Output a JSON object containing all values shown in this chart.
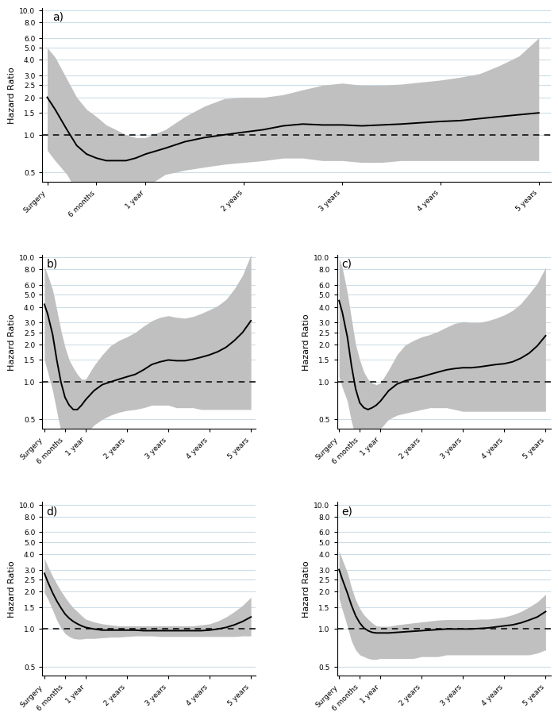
{
  "yticks": [
    0.5,
    1.0,
    1.5,
    2.0,
    2.5,
    3.0,
    4.0,
    5.0,
    6.0,
    8.0,
    10.0
  ],
  "xtick_labels": [
    "Surgery",
    "6 months",
    "1 year",
    "2 years",
    "3 years",
    "4 years",
    "5 years"
  ],
  "xtick_pos": [
    0,
    0.5,
    1.0,
    2.0,
    3.0,
    4.0,
    5.0
  ],
  "ylabel": "Hazard Ratio",
  "panel_labels": [
    "a)",
    "b)",
    "c)",
    "d)",
    "e)"
  ],
  "reference_line": 1.0,
  "ylim_log": [
    0.42,
    10.5
  ],
  "ci_color": "#c0c0c0",
  "line_color": "#000000",
  "grid_color": "#ccdde8",
  "background_color": "#ffffff",
  "panels": {
    "a": {
      "x": [
        0,
        0.08,
        0.2,
        0.3,
        0.4,
        0.5,
        0.6,
        0.7,
        0.8,
        0.9,
        1.0,
        1.2,
        1.4,
        1.6,
        1.8,
        2.0,
        2.2,
        2.4,
        2.6,
        2.8,
        3.0,
        3.2,
        3.4,
        3.6,
        3.8,
        4.0,
        4.2,
        4.4,
        4.6,
        4.8,
        5.0
      ],
      "y": [
        2.0,
        1.6,
        1.1,
        0.82,
        0.7,
        0.65,
        0.62,
        0.62,
        0.62,
        0.65,
        0.7,
        0.78,
        0.88,
        0.95,
        1.0,
        1.05,
        1.1,
        1.18,
        1.22,
        1.2,
        1.2,
        1.18,
        1.2,
        1.22,
        1.25,
        1.28,
        1.3,
        1.35,
        1.4,
        1.45,
        1.5
      ],
      "upper": [
        5.0,
        4.2,
        2.8,
        2.0,
        1.6,
        1.4,
        1.2,
        1.1,
        1.0,
        0.95,
        0.95,
        1.1,
        1.4,
        1.7,
        1.95,
        2.0,
        2.0,
        2.1,
        2.3,
        2.5,
        2.6,
        2.5,
        2.5,
        2.55,
        2.65,
        2.75,
        2.9,
        3.1,
        3.6,
        4.3,
        6.0
      ],
      "lower": [
        0.75,
        0.62,
        0.48,
        0.35,
        0.3,
        0.28,
        0.27,
        0.27,
        0.28,
        0.32,
        0.38,
        0.48,
        0.52,
        0.55,
        0.58,
        0.6,
        0.62,
        0.65,
        0.65,
        0.62,
        0.62,
        0.6,
        0.6,
        0.62,
        0.62,
        0.62,
        0.62,
        0.62,
        0.62,
        0.62,
        0.62
      ]
    },
    "b": {
      "x": [
        0,
        0.08,
        0.2,
        0.3,
        0.4,
        0.5,
        0.6,
        0.7,
        0.8,
        0.9,
        1.0,
        1.2,
        1.4,
        1.6,
        1.8,
        2.0,
        2.2,
        2.4,
        2.6,
        2.8,
        3.0,
        3.2,
        3.4,
        3.6,
        3.8,
        4.0,
        4.2,
        4.4,
        4.6,
        4.8,
        5.0
      ],
      "y": [
        4.2,
        3.5,
        2.4,
        1.5,
        1.0,
        0.75,
        0.65,
        0.6,
        0.6,
        0.65,
        0.72,
        0.85,
        0.95,
        1.0,
        1.05,
        1.1,
        1.15,
        1.25,
        1.38,
        1.45,
        1.5,
        1.48,
        1.48,
        1.52,
        1.58,
        1.65,
        1.75,
        1.9,
        2.15,
        2.5,
        3.1
      ],
      "upper": [
        8.5,
        7.2,
        5.5,
        3.8,
        2.6,
        1.9,
        1.5,
        1.3,
        1.15,
        1.05,
        1.05,
        1.35,
        1.65,
        1.95,
        2.15,
        2.3,
        2.5,
        2.8,
        3.1,
        3.3,
        3.4,
        3.3,
        3.25,
        3.35,
        3.55,
        3.8,
        4.1,
        4.6,
        5.6,
        7.2,
        10.5
      ],
      "lower": [
        1.5,
        1.2,
        0.85,
        0.58,
        0.4,
        0.32,
        0.28,
        0.27,
        0.28,
        0.32,
        0.38,
        0.45,
        0.5,
        0.54,
        0.57,
        0.59,
        0.6,
        0.62,
        0.65,
        0.65,
        0.65,
        0.62,
        0.62,
        0.62,
        0.6,
        0.6,
        0.6,
        0.6,
        0.6,
        0.6,
        0.6
      ]
    },
    "c": {
      "x": [
        0,
        0.08,
        0.2,
        0.3,
        0.4,
        0.5,
        0.6,
        0.7,
        0.8,
        0.9,
        1.0,
        1.2,
        1.4,
        1.6,
        1.8,
        2.0,
        2.2,
        2.4,
        2.6,
        2.8,
        3.0,
        3.2,
        3.4,
        3.6,
        3.8,
        4.0,
        4.2,
        4.4,
        4.6,
        4.8,
        5.0
      ],
      "y": [
        4.5,
        3.6,
        2.3,
        1.35,
        0.88,
        0.68,
        0.62,
        0.6,
        0.62,
        0.65,
        0.7,
        0.85,
        0.96,
        1.02,
        1.06,
        1.1,
        1.15,
        1.2,
        1.25,
        1.28,
        1.3,
        1.3,
        1.32,
        1.35,
        1.38,
        1.4,
        1.45,
        1.55,
        1.7,
        1.95,
        2.35
      ],
      "upper": [
        9.8,
        8.2,
        5.2,
        3.2,
        2.0,
        1.5,
        1.2,
        1.05,
        0.98,
        0.95,
        0.98,
        1.25,
        1.65,
        1.98,
        2.15,
        2.3,
        2.4,
        2.55,
        2.75,
        2.95,
        3.05,
        3.0,
        3.0,
        3.1,
        3.25,
        3.45,
        3.75,
        4.25,
        5.1,
        6.2,
        8.3
      ],
      "lower": [
        1.1,
        0.9,
        0.7,
        0.48,
        0.36,
        0.28,
        0.27,
        0.28,
        0.3,
        0.35,
        0.42,
        0.5,
        0.54,
        0.56,
        0.58,
        0.6,
        0.62,
        0.62,
        0.62,
        0.6,
        0.58,
        0.58,
        0.58,
        0.58,
        0.58,
        0.58,
        0.58,
        0.58,
        0.58,
        0.58,
        0.58
      ]
    },
    "d": {
      "x": [
        0,
        0.08,
        0.2,
        0.3,
        0.4,
        0.5,
        0.6,
        0.7,
        0.8,
        0.9,
        1.0,
        1.2,
        1.4,
        1.6,
        1.8,
        2.0,
        2.2,
        2.4,
        2.6,
        2.8,
        3.0,
        3.2,
        3.4,
        3.6,
        3.8,
        4.0,
        4.2,
        4.4,
        4.6,
        4.8,
        5.0
      ],
      "y": [
        2.8,
        2.4,
        1.95,
        1.68,
        1.48,
        1.32,
        1.22,
        1.15,
        1.1,
        1.06,
        1.03,
        1.0,
        0.98,
        0.98,
        0.98,
        0.98,
        0.98,
        0.97,
        0.97,
        0.97,
        0.97,
        0.97,
        0.97,
        0.97,
        0.97,
        0.98,
        1.0,
        1.03,
        1.08,
        1.15,
        1.25
      ],
      "upper": [
        3.7,
        3.2,
        2.65,
        2.3,
        2.02,
        1.8,
        1.62,
        1.48,
        1.38,
        1.28,
        1.2,
        1.14,
        1.1,
        1.08,
        1.06,
        1.06,
        1.06,
        1.06,
        1.06,
        1.06,
        1.06,
        1.06,
        1.06,
        1.06,
        1.08,
        1.1,
        1.16,
        1.25,
        1.38,
        1.55,
        1.8
      ],
      "lower": [
        1.95,
        1.75,
        1.42,
        1.18,
        1.02,
        0.92,
        0.87,
        0.84,
        0.83,
        0.83,
        0.84,
        0.84,
        0.85,
        0.86,
        0.86,
        0.87,
        0.88,
        0.88,
        0.88,
        0.87,
        0.87,
        0.87,
        0.87,
        0.87,
        0.87,
        0.87,
        0.87,
        0.87,
        0.87,
        0.88,
        0.88
      ]
    },
    "e": {
      "x": [
        0,
        0.08,
        0.2,
        0.3,
        0.4,
        0.5,
        0.6,
        0.7,
        0.8,
        0.9,
        1.0,
        1.2,
        1.4,
        1.6,
        1.8,
        2.0,
        2.2,
        2.4,
        2.6,
        2.8,
        3.0,
        3.2,
        3.4,
        3.6,
        3.8,
        4.0,
        4.2,
        4.4,
        4.6,
        4.8,
        5.0
      ],
      "y": [
        3.0,
        2.5,
        1.95,
        1.55,
        1.28,
        1.12,
        1.02,
        0.97,
        0.94,
        0.93,
        0.93,
        0.93,
        0.94,
        0.95,
        0.96,
        0.97,
        0.98,
        0.99,
        1.0,
        1.0,
        1.0,
        1.0,
        1.01,
        1.02,
        1.04,
        1.06,
        1.08,
        1.12,
        1.18,
        1.25,
        1.38
      ],
      "upper": [
        4.2,
        3.6,
        2.85,
        2.15,
        1.72,
        1.46,
        1.3,
        1.2,
        1.12,
        1.06,
        1.05,
        1.05,
        1.08,
        1.1,
        1.12,
        1.14,
        1.16,
        1.18,
        1.19,
        1.19,
        1.19,
        1.19,
        1.2,
        1.2,
        1.22,
        1.25,
        1.3,
        1.38,
        1.5,
        1.65,
        1.9
      ],
      "lower": [
        1.75,
        1.42,
        1.05,
        0.8,
        0.68,
        0.62,
        0.6,
        0.58,
        0.57,
        0.57,
        0.58,
        0.58,
        0.58,
        0.58,
        0.58,
        0.6,
        0.6,
        0.6,
        0.62,
        0.62,
        0.62,
        0.62,
        0.62,
        0.62,
        0.62,
        0.62,
        0.62,
        0.62,
        0.62,
        0.64,
        0.68
      ]
    }
  }
}
